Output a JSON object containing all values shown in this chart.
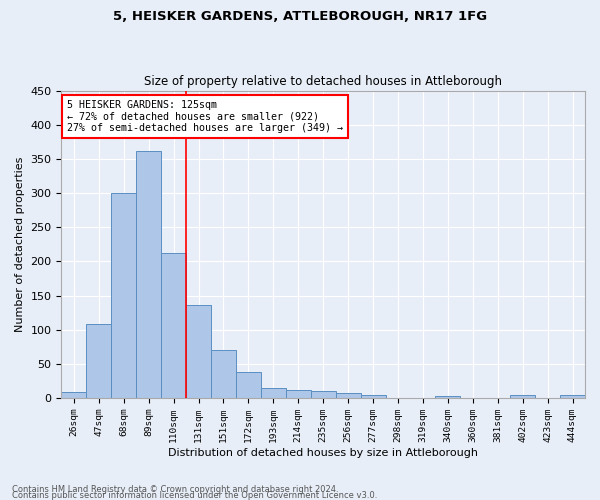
{
  "title": "5, HEISKER GARDENS, ATTLEBOROUGH, NR17 1FG",
  "subtitle": "Size of property relative to detached houses in Attleborough",
  "xlabel": "Distribution of detached houses by size in Attleborough",
  "ylabel": "Number of detached properties",
  "footnote1": "Contains HM Land Registry data © Crown copyright and database right 2024.",
  "footnote2": "Contains public sector information licensed under the Open Government Licence v3.0.",
  "bin_labels": [
    "26sqm",
    "47sqm",
    "68sqm",
    "89sqm",
    "110sqm",
    "131sqm",
    "151sqm",
    "172sqm",
    "193sqm",
    "214sqm",
    "235sqm",
    "256sqm",
    "277sqm",
    "298sqm",
    "319sqm",
    "340sqm",
    "360sqm",
    "381sqm",
    "402sqm",
    "423sqm",
    "444sqm"
  ],
  "bar_values": [
    8,
    108,
    300,
    362,
    212,
    136,
    70,
    38,
    15,
    12,
    10,
    7,
    4,
    0,
    0,
    3,
    0,
    0,
    4,
    0,
    4
  ],
  "bar_color": "#aec6e8",
  "bar_edge_color": "#5a8fc2",
  "bg_color": "#e8eef8",
  "grid_color": "#ffffff",
  "vline_x": 4.5,
  "vline_color": "red",
  "annotation_line1": "5 HEISKER GARDENS: 125sqm",
  "annotation_line2": "← 72% of detached houses are smaller (922)",
  "annotation_line3": "27% of semi-detached houses are larger (349) →",
  "annotation_box_color": "white",
  "annotation_box_edge": "red",
  "ylim": [
    0,
    450
  ],
  "yticks": [
    0,
    50,
    100,
    150,
    200,
    250,
    300,
    350,
    400,
    450
  ]
}
